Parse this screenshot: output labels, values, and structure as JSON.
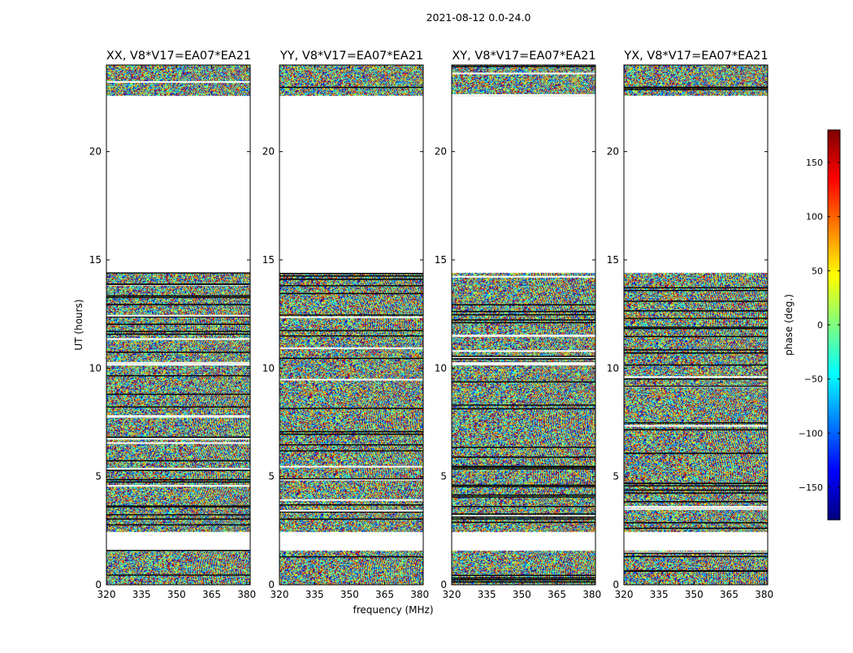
{
  "chart_data": {
    "type": "heatmap",
    "title": "2021-08-12 0.0-24.0",
    "xlabel": "frequency (MHz)",
    "ylabel": "UT (hours)",
    "xlim": [
      320,
      381.5
    ],
    "ylim": [
      0,
      24
    ],
    "xticks": [
      320,
      335,
      350,
      365,
      380
    ],
    "yticks": [
      0,
      5,
      10,
      15,
      20
    ],
    "panels": [
      {
        "name": "XX",
        "title": "XX, V8*V17=EA07*EA21"
      },
      {
        "name": "YY",
        "title": "YY, V8*V17=EA07*EA21"
      },
      {
        "name": "XY",
        "title": "XY, V8*V17=EA07*EA21"
      },
      {
        "name": "YX",
        "title": "YX, V8*V17=EA07*EA21"
      }
    ],
    "data_blocks_ut": [
      [
        0.0,
        1.6
      ],
      [
        2.45,
        14.4
      ],
      [
        22.6,
        24.0
      ]
    ],
    "flagged_ut_ranges": [
      [
        1.6,
        2.45
      ],
      [
        14.4,
        22.6
      ]
    ],
    "colorbar": {
      "label": "phase (deg.)",
      "range": [
        -180,
        180
      ],
      "ticks": [
        -150,
        -100,
        -50,
        0,
        50,
        100,
        150
      ],
      "colormap": "jet"
    }
  }
}
